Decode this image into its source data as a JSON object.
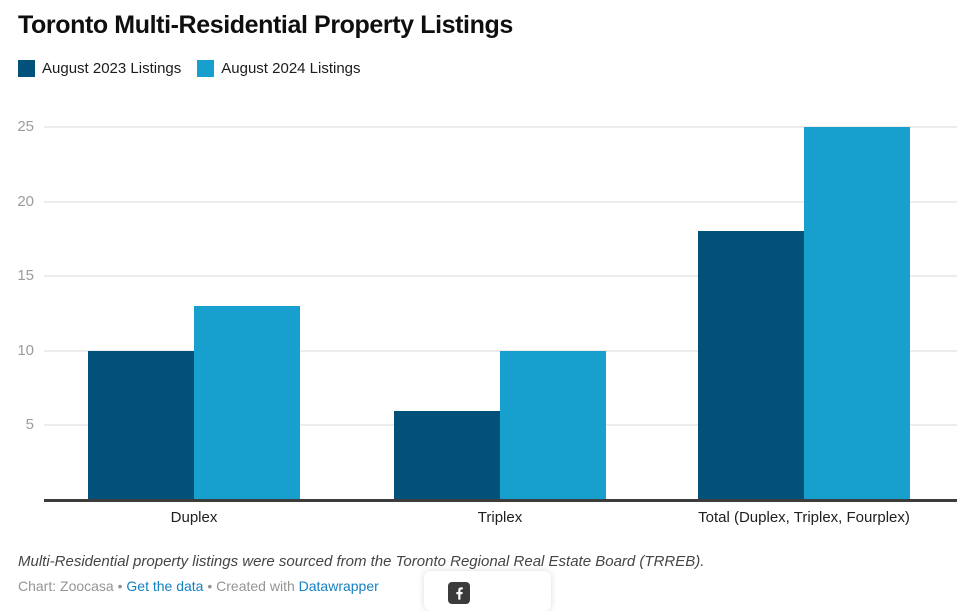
{
  "title": "Toronto Multi-Residential Property Listings",
  "chart_data": {
    "type": "bar",
    "grouped": true,
    "categories": [
      "Duplex",
      "Triplex",
      "Total (Duplex, Triplex, Fourplex)"
    ],
    "series": [
      {
        "name": "August 2023 Listings",
        "color": "#02517a",
        "values": [
          10,
          6,
          18
        ]
      },
      {
        "name": "August 2024 Listings",
        "color": "#179fcd",
        "values": [
          13,
          10,
          25
        ]
      }
    ],
    "yticks": [
      5,
      10,
      15,
      20,
      25
    ],
    "ylim": [
      0,
      25
    ],
    "grid": true,
    "legend_position": "top-left",
    "gridline_color": "#ececec",
    "axis_label_color": "#9c9c9c",
    "baseline_color": "#3c3c3c"
  },
  "note": "Multi-Residential property listings were sourced from the Toronto Regional Real Estate Board (TRREB).",
  "footer": {
    "chart_credit": "Chart: Zoocasa",
    "separator": "•",
    "get_data_label": "Get the data",
    "created_with": "Created with",
    "datawrapper_label": "Datawrapper",
    "link_color": "#1580c2"
  },
  "share": {
    "facebook_icon": "facebook-icon",
    "button_color": "#3b3b3b"
  }
}
